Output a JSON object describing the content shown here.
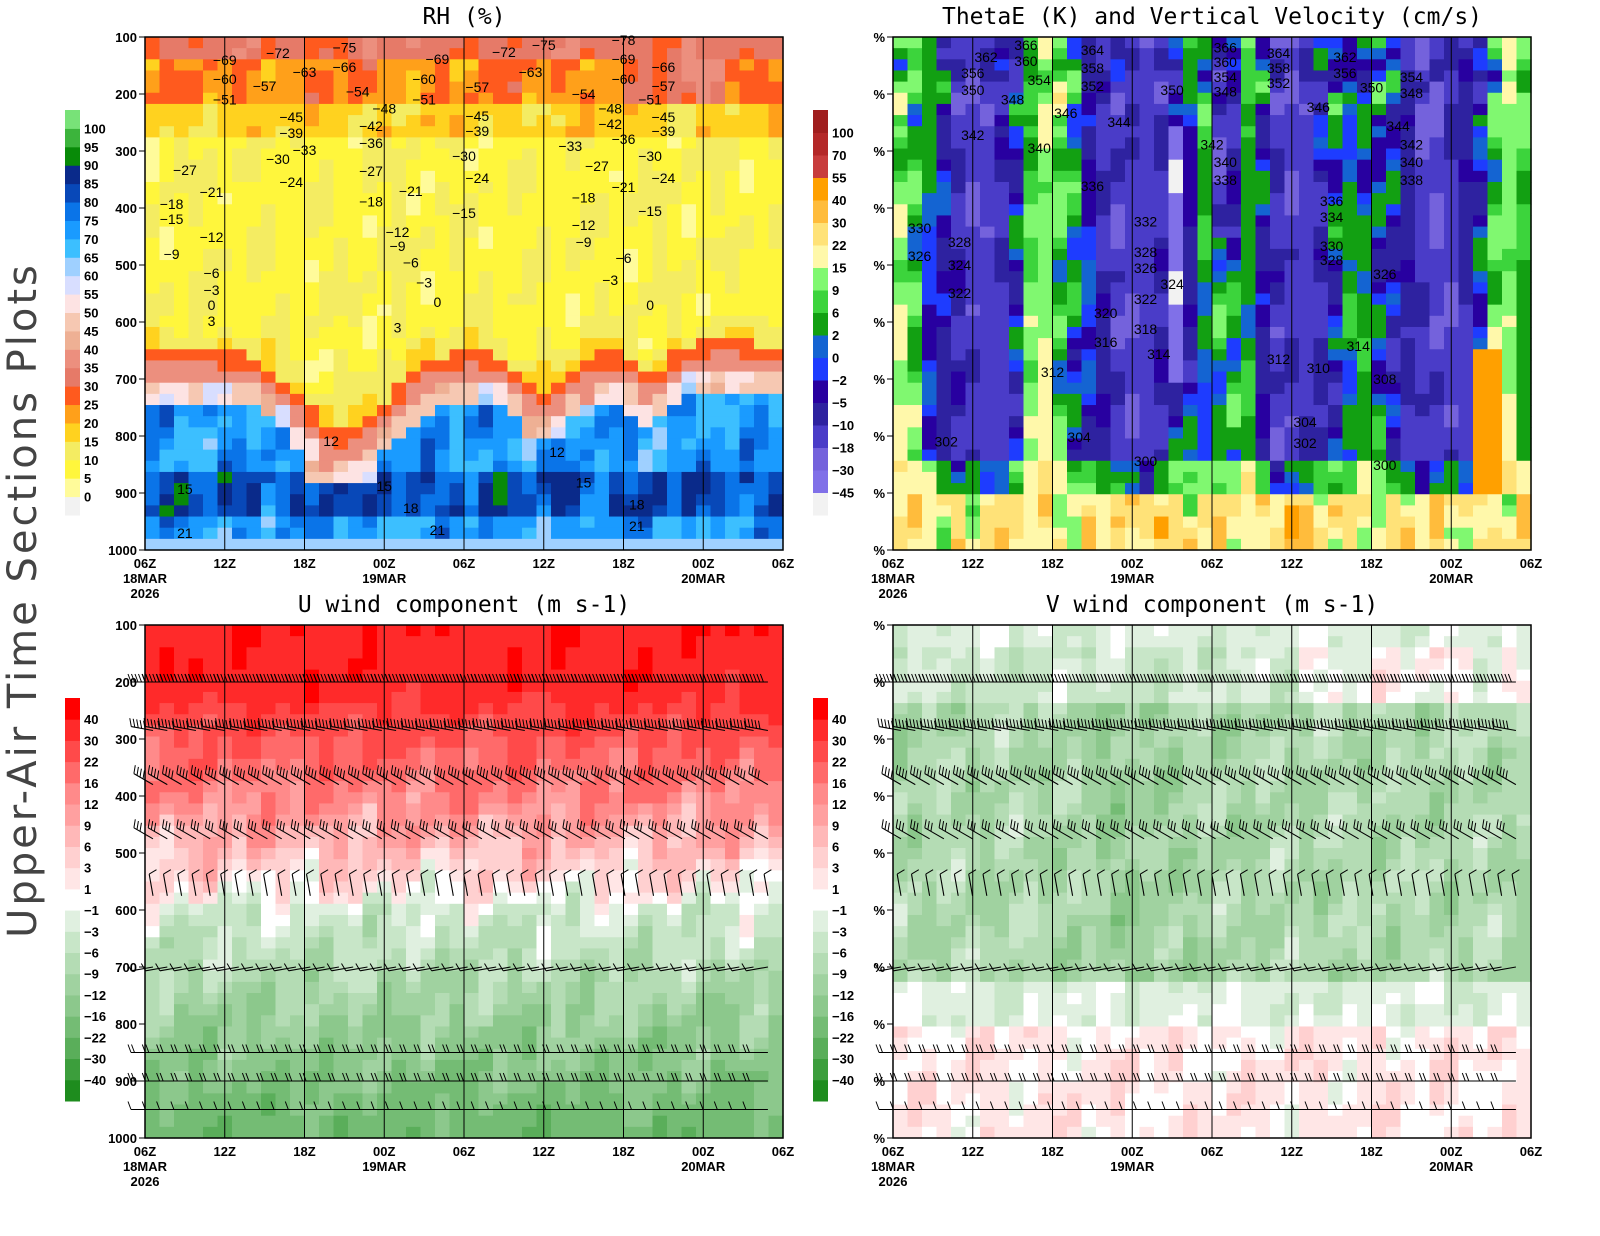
{
  "side_title": "Upper-Air Time Sections Plots",
  "x_axis": {
    "ticks": [
      "06Z",
      "12Z",
      "18Z",
      "00Z",
      "06Z",
      "12Z",
      "18Z",
      "00Z",
      "06Z"
    ],
    "start": "18MAR 06Z",
    "end": "20MAR 06Z",
    "date_labels": [
      {
        "tick": 0,
        "lines": [
          "18MAR",
          "2026"
        ]
      },
      {
        "tick": 3,
        "lines": [
          "19MAR"
        ]
      },
      {
        "tick": 7,
        "lines": [
          "20MAR"
        ]
      }
    ]
  },
  "chart_data": [
    {
      "type": "heatmap",
      "title": "RH (%)",
      "y_range": [
        100,
        1000
      ],
      "y_ticks": [
        "100",
        "200",
        "300",
        "400",
        "500",
        "600",
        "700",
        "800",
        "900",
        "1000"
      ],
      "colorbar": {
        "levels": [
          0,
          5,
          10,
          15,
          20,
          25,
          30,
          35,
          40,
          45,
          50,
          55,
          60,
          65,
          70,
          75,
          80,
          85,
          90,
          95,
          100
        ],
        "colors": [
          "#f2f2f2",
          "#fffb9a",
          "#fff63c",
          "#f4ec62",
          "#ffd21f",
          "#ffa01a",
          "#ff5a1e",
          "#e67a68",
          "#ec8f7e",
          "#eeb094",
          "#f6c8b2",
          "#fde3e3",
          "#d8deff",
          "#9fd0ff",
          "#3cbfff",
          "#1a9bff",
          "#0a74e8",
          "#0848b8",
          "#0a2a8a",
          "#088a08",
          "#3cb43c",
          "#78e278"
        ]
      },
      "contour_labels": [
        [
          -69,
          "18MAR 12Z",
          140
        ],
        [
          -72,
          "18MAR 16Z",
          128
        ],
        [
          -75,
          "18MAR 21Z",
          118
        ],
        [
          -60,
          "18MAR 12Z",
          174
        ],
        [
          -57,
          "18MAR 15Z",
          186
        ],
        [
          -63,
          "18MAR 18Z",
          161
        ],
        [
          -66,
          "18MAR 21Z",
          153
        ],
        [
          -51,
          "18MAR 12Z",
          210
        ],
        [
          -54,
          "18MAR 22Z",
          196
        ],
        [
          -45,
          "18MAR 17Z",
          240
        ],
        [
          -39,
          "18MAR 17Z",
          268
        ],
        [
          -33,
          "18MAR 18Z",
          298
        ],
        [
          -48,
          "19MAR 00Z",
          225
        ],
        [
          -42,
          "18MAR 23Z",
          256
        ],
        [
          -36,
          "18MAR 23Z",
          286
        ],
        [
          -30,
          "18MAR 16Z",
          314
        ],
        [
          -27,
          "18MAR 09Z",
          333
        ],
        [
          -24,
          "18MAR 17Z",
          354
        ],
        [
          -21,
          "18MAR 11Z",
          372
        ],
        [
          -18,
          "18MAR 08Z",
          393
        ],
        [
          -15,
          "18MAR 08Z",
          419
        ],
        [
          -12,
          "18MAR 11Z",
          451
        ],
        [
          -9,
          "18MAR 08Z",
          481
        ],
        [
          -6,
          "18MAR 11Z",
          514
        ],
        [
          -3,
          "18MAR 11Z",
          544
        ],
        [
          0,
          "18MAR 11Z",
          570
        ],
        [
          3,
          "18MAR 11Z",
          598
        ],
        [
          -69,
          "19MAR 04Z",
          139
        ],
        [
          -72,
          "19MAR 09Z",
          126
        ],
        [
          -75,
          "19MAR 12Z",
          114
        ],
        [
          -60,
          "19MAR 03Z",
          174
        ],
        [
          -63,
          "19MAR 11Z",
          161
        ],
        [
          -57,
          "19MAR 07Z",
          188
        ],
        [
          -51,
          "19MAR 03Z",
          210
        ],
        [
          -27,
          "18MAR 23Z",
          335
        ],
        [
          -18,
          "18MAR 23Z",
          389
        ],
        [
          -21,
          "19MAR 02Z",
          370
        ],
        [
          -12,
          "19MAR 01Z",
          442
        ],
        [
          -9,
          "19MAR 01Z",
          467
        ],
        [
          -6,
          "19MAR 02Z",
          496
        ],
        [
          -3,
          "19MAR 03Z",
          531
        ],
        [
          0,
          "19MAR 04Z",
          565
        ],
        [
          3,
          "19MAR 01Z",
          610
        ],
        [
          -45,
          "19MAR 07Z",
          239
        ],
        [
          -39,
          "19MAR 07Z",
          265
        ],
        [
          -30,
          "19MAR 06Z",
          309
        ],
        [
          -24,
          "19MAR 07Z",
          347
        ],
        [
          -15,
          "19MAR 06Z",
          409
        ],
        [
          -54,
          "19MAR 15Z",
          200
        ],
        [
          -48,
          "19MAR 17Z",
          225
        ],
        [
          -42,
          "19MAR 17Z",
          253
        ],
        [
          -36,
          "19MAR 18Z",
          279
        ],
        [
          -33,
          "19MAR 14Z",
          291
        ],
        [
          -27,
          "19MAR 16Z",
          326
        ],
        [
          -21,
          "19MAR 18Z",
          363
        ],
        [
          -18,
          "19MAR 15Z",
          382
        ],
        [
          -12,
          "19MAR 15Z",
          430
        ],
        [
          -9,
          "19MAR 15Z",
          460
        ],
        [
          -6,
          "19MAR 18Z",
          488
        ],
        [
          -3,
          "19MAR 17Z",
          526
        ],
        [
          0,
          "19MAR 20Z",
          570
        ],
        [
          -78,
          "19MAR 18Z",
          105
        ],
        [
          -69,
          "19MAR 18Z",
          139
        ],
        [
          -60,
          "19MAR 18Z",
          174
        ],
        [
          -51,
          "19MAR 20Z",
          210
        ],
        [
          -66,
          "19MAR 21Z",
          153
        ],
        [
          -57,
          "19MAR 21Z",
          186
        ],
        [
          -45,
          "19MAR 21Z",
          240
        ],
        [
          -39,
          "19MAR 21Z",
          265
        ],
        [
          -30,
          "19MAR 20Z",
          309
        ],
        [
          -24,
          "19MAR 21Z",
          347
        ],
        [
          -15,
          "19MAR 20Z",
          405
        ],
        [
          12,
          "18MAR 20Z",
          809
        ],
        [
          15,
          "18MAR 09Z",
          893
        ],
        [
          21,
          "18MAR 09Z",
          970
        ],
        [
          15,
          "19MAR 00Z",
          888
        ],
        [
          18,
          "19MAR 02Z",
          926
        ],
        [
          21,
          "19MAR 04Z",
          965
        ],
        [
          12,
          "19MAR 13Z",
          828
        ],
        [
          15,
          "19MAR 15Z",
          882
        ],
        [
          18,
          "19MAR 19Z",
          920
        ],
        [
          21,
          "19MAR 19Z",
          958
        ]
      ]
    },
    {
      "type": "heatmap",
      "title": "ThetaE (K) and Vertical Velocity (cm/s)",
      "y_range": [
        100,
        1000
      ],
      "y_ticks": [
        "%",
        "%",
        "%",
        "%",
        "%",
        "%",
        "%",
        "%",
        "%",
        "%"
      ],
      "colorbar": {
        "levels": [
          -45,
          -30,
          -18,
          -10,
          -5,
          -2,
          0,
          2,
          6,
          9,
          15,
          22,
          30,
          40,
          55,
          70,
          100
        ],
        "colors": [
          "#f2f2f2",
          "#8070e8",
          "#7462dc",
          "#4a3cc8",
          "#2e22a0",
          "#2800a0",
          "#1e3cff",
          "#1464d2",
          "#12a012",
          "#3cd43c",
          "#80f870",
          "#fff8aa",
          "#ffe278",
          "#ffbc3c",
          "#ffa000",
          "#c83c3c",
          "#b42828",
          "#a01e1e"
        ]
      },
      "contour_labels": [
        [
          366,
          "18MAR 16Z",
          114
        ],
        [
          362,
          "18MAR 13Z",
          135
        ],
        [
          360,
          "18MAR 16Z",
          142
        ],
        [
          364,
          "18MAR 21Z",
          123
        ],
        [
          358,
          "18MAR 21Z",
          154
        ],
        [
          356,
          "18MAR 12Z",
          163
        ],
        [
          354,
          "18MAR 17Z",
          175
        ],
        [
          352,
          "18MAR 21Z",
          186
        ],
        [
          350,
          "18MAR 12Z",
          193
        ],
        [
          348,
          "18MAR 15Z",
          210
        ],
        [
          346,
          "18MAR 19Z",
          233
        ],
        [
          344,
          "18MAR 23Z",
          249
        ],
        [
          342,
          "18MAR 12Z",
          272
        ],
        [
          340,
          "18MAR 17Z",
          295
        ],
        [
          336,
          "18MAR 21Z",
          361
        ],
        [
          366,
          "19MAR 07Z",
          118
        ],
        [
          360,
          "19MAR 07Z",
          144
        ],
        [
          354,
          "19MAR 07Z",
          170
        ],
        [
          348,
          "19MAR 07Z",
          196
        ],
        [
          364,
          "19MAR 11Z",
          128
        ],
        [
          358,
          "19MAR 11Z",
          154
        ],
        [
          352,
          "19MAR 11Z",
          181
        ],
        [
          350,
          "19MAR 03Z",
          193
        ],
        [
          342,
          "19MAR 06Z",
          289
        ],
        [
          340,
          "19MAR 07Z",
          319
        ],
        [
          338,
          "19MAR 07Z",
          351
        ],
        [
          362,
          "19MAR 16Z",
          135
        ],
        [
          356,
          "19MAR 16Z",
          163
        ],
        [
          346,
          "19MAR 14Z",
          223
        ],
        [
          354,
          "19MAR 21Z",
          170
        ],
        [
          350,
          "19MAR 18Z",
          189
        ],
        [
          348,
          "19MAR 21Z",
          198
        ],
        [
          344,
          "19MAR 20Z",
          256
        ],
        [
          342,
          "19MAR 21Z",
          289
        ],
        [
          340,
          "19MAR 21Z",
          319
        ],
        [
          338,
          "19MAR 21Z",
          351
        ],
        [
          336,
          "19MAR 15Z",
          388
        ],
        [
          334,
          "19MAR 15Z",
          416
        ],
        [
          330,
          "18MAR 08Z",
          435
        ],
        [
          332,
          "19MAR 01Z",
          424
        ],
        [
          330,
          "19MAR 15Z",
          467
        ],
        [
          328,
          "18MAR 11Z",
          460
        ],
        [
          326,
          "18MAR 08Z",
          484
        ],
        [
          324,
          "18MAR 11Z",
          500
        ],
        [
          328,
          "19MAR 15Z",
          491
        ],
        [
          328,
          "19MAR 01Z",
          477
        ],
        [
          326,
          "19MAR 01Z",
          505
        ],
        [
          324,
          "19MAR 03Z",
          533
        ],
        [
          326,
          "19MAR 19Z",
          516
        ],
        [
          322,
          "18MAR 11Z",
          549
        ],
        [
          322,
          "19MAR 01Z",
          560
        ],
        [
          320,
          "18MAR 22Z",
          584
        ],
        [
          318,
          "19MAR 01Z",
          612
        ],
        [
          316,
          "18MAR 22Z",
          635
        ],
        [
          314,
          "19MAR 02Z",
          656
        ],
        [
          314,
          "19MAR 17Z",
          642
        ],
        [
          312,
          "19MAR 11Z",
          665
        ],
        [
          310,
          "19MAR 14Z",
          681
        ],
        [
          308,
          "19MAR 19Z",
          700
        ],
        [
          312,
          "18MAR 18Z",
          688
        ],
        [
          304,
          "19MAR 13Z",
          775
        ],
        [
          302,
          "19MAR 13Z",
          812
        ],
        [
          304,
          "18MAR 20Z",
          802
        ],
        [
          302,
          "18MAR 10Z",
          810
        ],
        [
          300,
          "19MAR 01Z",
          844
        ],
        [
          300,
          "19MAR 19Z",
          851
        ]
      ]
    },
    {
      "type": "heatmap",
      "title": "U wind component (m s-1)",
      "y_range": [
        100,
        1000
      ],
      "y_ticks": [
        "100",
        "200",
        "300",
        "400",
        "500",
        "600",
        "700",
        "800",
        "900",
        "1000"
      ],
      "colorbar": {
        "levels": [
          -40,
          -30,
          -22,
          -16,
          -12,
          -9,
          -6,
          -3,
          -1,
          1,
          3,
          6,
          9,
          12,
          16,
          22,
          30,
          40
        ],
        "colors": [
          "#1e8c1e",
          "#3c9e3c",
          "#5aae5a",
          "#74bc74",
          "#8cc88c",
          "#a0d2a0",
          "#b4dcb4",
          "#c8e6c8",
          "#e0f0e0",
          "#ffffff",
          "#ffe6e6",
          "#ffd0d0",
          "#ffb8b8",
          "#ffa0a0",
          "#ff8a8a",
          "#ff6a6a",
          "#ff4a4a",
          "#ff2a2a",
          "#ff0000"
        ]
      },
      "wind_barb_levels": [
        200,
        285,
        380,
        475,
        575,
        700,
        850,
        900,
        950
      ]
    },
    {
      "type": "heatmap",
      "title": "V wind component (m s-1)",
      "y_range": [
        100,
        1000
      ],
      "y_ticks": [
        "%",
        "%",
        "%",
        "%",
        "%",
        "%",
        "%",
        "%",
        "%",
        "%"
      ],
      "colorbar": {
        "levels": [
          -40,
          -30,
          -22,
          -16,
          -12,
          -9,
          -6,
          -3,
          -1,
          1,
          3,
          6,
          9,
          12,
          16,
          22,
          30,
          40
        ],
        "colors": [
          "#1e8c1e",
          "#3c9e3c",
          "#5aae5a",
          "#74bc74",
          "#8cc88c",
          "#a0d2a0",
          "#b4dcb4",
          "#c8e6c8",
          "#e0f0e0",
          "#ffffff",
          "#ffe6e6",
          "#ffd0d0",
          "#ffb8b8",
          "#ffa0a0",
          "#ff8a8a",
          "#ff6a6a",
          "#ff4a4a",
          "#ff2a2a",
          "#ff0000"
        ]
      },
      "wind_barb_levels": [
        200,
        285,
        380,
        475,
        575,
        700,
        850,
        900,
        950
      ]
    }
  ]
}
